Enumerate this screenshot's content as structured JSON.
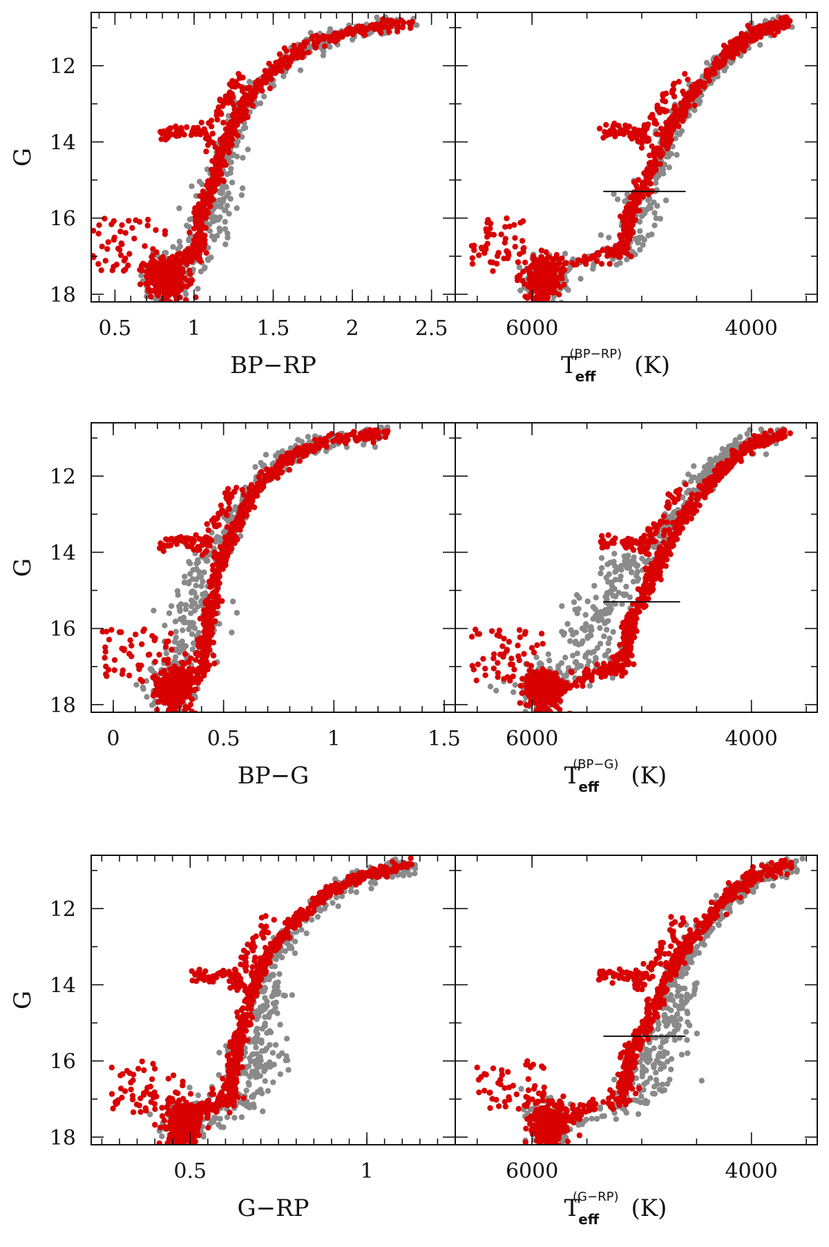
{
  "colors": {
    "field": "#8a8a8a",
    "members": "#d80000",
    "axes": "#111111"
  },
  "y_axis": {
    "label": "G",
    "range": [
      18.2,
      10.6
    ],
    "ticks": [
      "12",
      "14",
      "16",
      "18"
    ],
    "tick_values": [
      12,
      14,
      16,
      18
    ]
  },
  "chart_data": [
    {
      "id": "r1-color",
      "type": "scatter",
      "xlabel": "BP−RP",
      "xlim": [
        0.35,
        2.65
      ],
      "ticks": [
        {
          "v": 0.5,
          "t": "0.5"
        },
        {
          "v": 1,
          "t": "1"
        },
        {
          "v": 1.5,
          "t": "1.5"
        },
        {
          "v": 2,
          "t": "2"
        },
        {
          "v": 2.5,
          "t": "2.5"
        }
      ],
      "ridge": [
        [
          0.82,
          17.9
        ],
        [
          0.84,
          17.5
        ],
        [
          0.86,
          17.2
        ],
        [
          0.97,
          17.05
        ],
        [
          1.03,
          16.7
        ],
        [
          1.04,
          16.2
        ],
        [
          1.05,
          15.8
        ],
        [
          1.1,
          15.3
        ],
        [
          1.15,
          14.6
        ],
        [
          1.2,
          14.0
        ],
        [
          1.27,
          13.4
        ],
        [
          1.35,
          12.8
        ],
        [
          1.5,
          12.1
        ],
        [
          1.7,
          11.5
        ],
        [
          1.95,
          11.1
        ],
        [
          2.4,
          10.85
        ]
      ],
      "field_offset": 0.05,
      "series": [
        {
          "name": "field",
          "color": "#8a8a8a"
        },
        {
          "name": "members",
          "color": "#d80000"
        }
      ]
    },
    {
      "id": "r1-teff",
      "type": "scatter",
      "xlabel": "T",
      "xlabel_sub": "eff",
      "xlabel_sup": "(BP−RP)",
      "xlabel_unit": "(K)",
      "xlim": [
        6700,
        3400
      ],
      "ticks": [
        {
          "v": 6000,
          "t": "6000"
        },
        {
          "v": 4000,
          "t": "4000"
        }
      ],
      "ridge": [
        [
          5900,
          17.9
        ],
        [
          5850,
          17.5
        ],
        [
          5800,
          17.2
        ],
        [
          5300,
          17.05
        ],
        [
          5150,
          16.7
        ],
        [
          5130,
          16.2
        ],
        [
          5100,
          15.8
        ],
        [
          5000,
          15.3
        ],
        [
          4900,
          14.6
        ],
        [
          4800,
          14.0
        ],
        [
          4680,
          13.4
        ],
        [
          4550,
          12.8
        ],
        [
          4350,
          12.1
        ],
        [
          4150,
          11.5
        ],
        [
          3950,
          11.1
        ],
        [
          3650,
          10.85
        ]
      ],
      "field_offset": -60,
      "hline": {
        "y": 15.3,
        "x1": 5350,
        "x2": 4600
      },
      "series": [
        {
          "name": "field",
          "color": "#8a8a8a"
        },
        {
          "name": "members",
          "color": "#d80000"
        }
      ]
    },
    {
      "id": "r2-color",
      "type": "scatter",
      "xlabel": "BP−G",
      "xlim": [
        -0.1,
        1.55
      ],
      "ticks": [
        {
          "v": 0,
          "t": "0"
        },
        {
          "v": 0.5,
          "t": "0.5"
        },
        {
          "v": 1,
          "t": "1"
        },
        {
          "v": 1.5,
          "t": "1.5"
        }
      ],
      "ridge": [
        [
          0.28,
          17.9
        ],
        [
          0.3,
          17.5
        ],
        [
          0.33,
          17.2
        ],
        [
          0.38,
          17.0
        ],
        [
          0.41,
          16.6
        ],
        [
          0.42,
          16.2
        ],
        [
          0.43,
          15.8
        ],
        [
          0.45,
          15.3
        ],
        [
          0.47,
          14.6
        ],
        [
          0.5,
          14.0
        ],
        [
          0.55,
          13.4
        ],
        [
          0.6,
          12.8
        ],
        [
          0.68,
          12.1
        ],
        [
          0.8,
          11.5
        ],
        [
          0.95,
          11.1
        ],
        [
          1.25,
          10.85
        ]
      ],
      "field_offset": -0.1,
      "series": [
        {
          "name": "field",
          "color": "#8a8a8a"
        },
        {
          "name": "members",
          "color": "#d80000"
        }
      ]
    },
    {
      "id": "r2-teff",
      "type": "scatter",
      "xlabel": "T",
      "xlabel_sub": "eff",
      "xlabel_sup": "(BP−G)",
      "xlabel_unit": "(K)",
      "xlim": [
        6700,
        3400
      ],
      "ticks": [
        {
          "v": 6000,
          "t": "6000"
        },
        {
          "v": 4000,
          "t": "4000"
        }
      ],
      "ridge": [
        [
          5900,
          17.9
        ],
        [
          5700,
          17.5
        ],
        [
          5400,
          17.2
        ],
        [
          5200,
          17.0
        ],
        [
          5150,
          16.6
        ],
        [
          5120,
          16.2
        ],
        [
          5100,
          15.8
        ],
        [
          5000,
          15.3
        ],
        [
          4900,
          14.6
        ],
        [
          4800,
          14.0
        ],
        [
          4680,
          13.4
        ],
        [
          4550,
          12.8
        ],
        [
          4350,
          12.1
        ],
        [
          4150,
          11.5
        ],
        [
          3950,
          11.1
        ],
        [
          3650,
          10.85
        ]
      ],
      "field_offset": 400,
      "hline": {
        "y": 15.3,
        "x1": 5350,
        "x2": 4650
      },
      "series": [
        {
          "name": "field",
          "color": "#8a8a8a"
        },
        {
          "name": "members",
          "color": "#d80000"
        }
      ]
    },
    {
      "id": "r3-color",
      "type": "scatter",
      "xlabel": "G−RP",
      "xlim": [
        0.22,
        1.25
      ],
      "ticks": [
        {
          "v": 0.5,
          "t": "0.5"
        },
        {
          "v": 1,
          "t": "1"
        }
      ],
      "ridge": [
        [
          0.48,
          17.9
        ],
        [
          0.52,
          17.5
        ],
        [
          0.56,
          17.2
        ],
        [
          0.6,
          17.0
        ],
        [
          0.61,
          16.6
        ],
        [
          0.62,
          16.2
        ],
        [
          0.63,
          15.8
        ],
        [
          0.64,
          15.3
        ],
        [
          0.66,
          14.6
        ],
        [
          0.68,
          14.0
        ],
        [
          0.71,
          13.4
        ],
        [
          0.75,
          12.8
        ],
        [
          0.82,
          12.1
        ],
        [
          0.9,
          11.5
        ],
        [
          1.0,
          11.1
        ],
        [
          1.12,
          10.85
        ]
      ],
      "field_offset": 0.07,
      "series": [
        {
          "name": "field",
          "color": "#8a8a8a"
        },
        {
          "name": "members",
          "color": "#d80000"
        }
      ]
    },
    {
      "id": "r3-teff",
      "type": "scatter",
      "xlabel": "T",
      "xlabel_sub": "eff",
      "xlabel_sup": "(G−RP)",
      "xlabel_unit": "(K)",
      "xlim": [
        6700,
        3400
      ],
      "ticks": [
        {
          "v": 6000,
          "t": "6000"
        },
        {
          "v": 4000,
          "t": "4000"
        }
      ],
      "ridge": [
        [
          5850,
          17.9
        ],
        [
          5700,
          17.5
        ],
        [
          5500,
          17.2
        ],
        [
          5200,
          17.0
        ],
        [
          5150,
          16.6
        ],
        [
          5120,
          16.2
        ],
        [
          5100,
          15.8
        ],
        [
          5000,
          15.3
        ],
        [
          4900,
          14.6
        ],
        [
          4800,
          14.0
        ],
        [
          4680,
          13.4
        ],
        [
          4550,
          12.8
        ],
        [
          4350,
          12.1
        ],
        [
          4150,
          11.5
        ],
        [
          3950,
          11.1
        ],
        [
          3650,
          10.85
        ]
      ],
      "field_offset": -250,
      "hline": {
        "y": 15.35,
        "x1": 5350,
        "x2": 4600
      },
      "series": [
        {
          "name": "field",
          "color": "#8a8a8a"
        },
        {
          "name": "members",
          "color": "#d80000"
        }
      ]
    }
  ]
}
